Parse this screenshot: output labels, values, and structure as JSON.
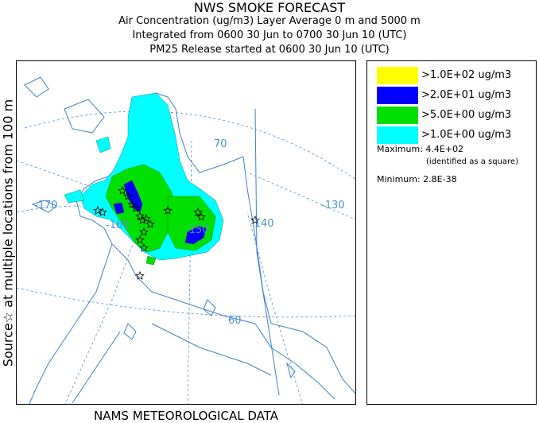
{
  "header": {
    "title": "NWS SMOKE FORECAST",
    "line2": "Air Concentration (ug/m3) Layer Average    0 m and  5000 m",
    "line3": "Integrated from 0600 30 Jun to 0700 30 Jun 10 (UTC)",
    "line4": "PM25 Release started at 0600 30 Jun 10 (UTC)"
  },
  "side_label": "Source☆   at multiple locations    from    100 m",
  "footer": "NAMS METEOROLOGICAL DATA",
  "map": {
    "graticule_labels": [
      "70",
      "-140",
      "-130",
      "-170",
      "-160",
      "-150",
      "60"
    ],
    "colors": {
      "graticule": "#4f8fd6",
      "coast": "#3f7fcf",
      "source_marker": "#000000"
    }
  },
  "legend": {
    "items": [
      {
        "label": ">1.0E+02 ug/m3",
        "color": "#ffff00"
      },
      {
        "label": ">2.0E+01 ug/m3",
        "color": "#0000ff"
      },
      {
        "label": ">5.0E+00 ug/m3",
        "color": "#00e000"
      },
      {
        "label": ">1.0E+00 ug/m3",
        "color": "#00ffff"
      }
    ],
    "maximum": "Maximum: 4.4E+02",
    "maximum_note": "(identified as a square)",
    "minimum": "Minimum: 2.8E-38"
  }
}
